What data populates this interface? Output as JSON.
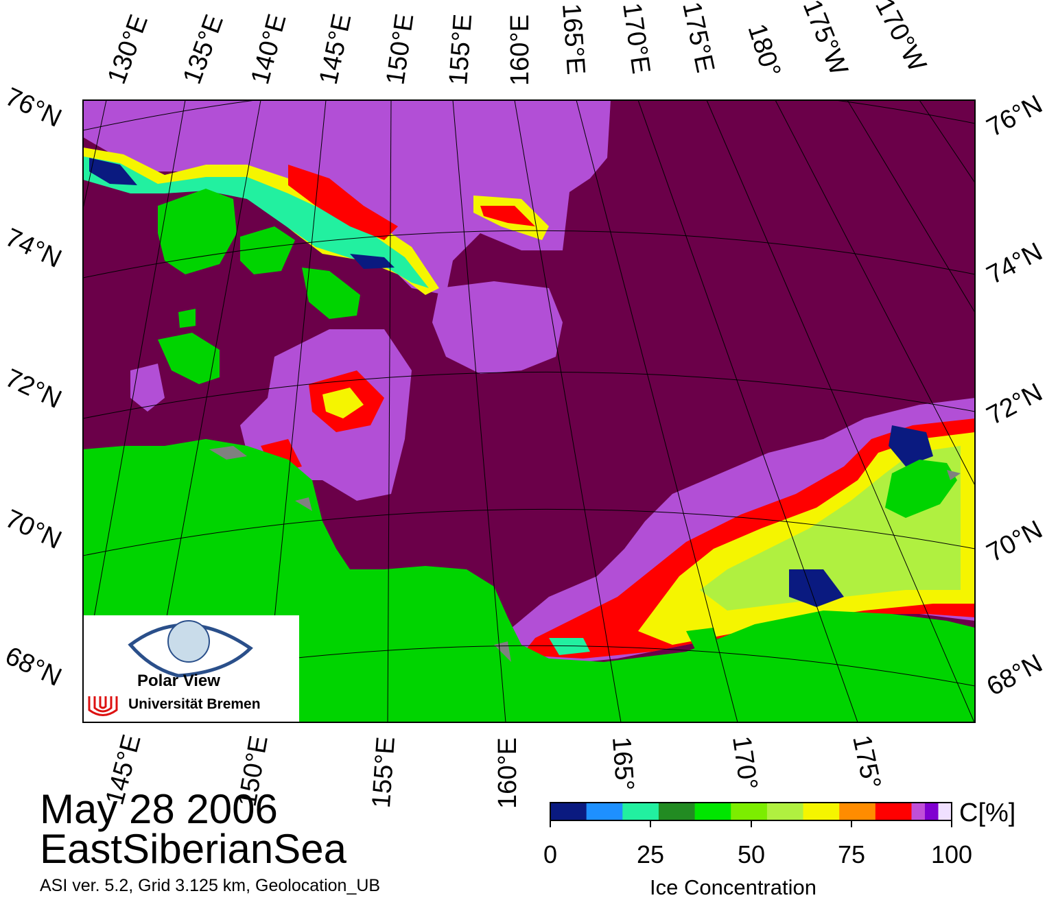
{
  "date_label": "May 28 2006",
  "region_label": "EastSiberianSea",
  "footnote": "ASI ver. 5.2,  Grid 3.125 km, Geolocation_UB",
  "colorbar": {
    "title": "Ice Concentration",
    "unit": "C[%]",
    "ticks": [
      "0",
      "25",
      "50",
      "75",
      "100"
    ],
    "colors": [
      "#0a1a80",
      "#1e90ff",
      "#22f0a0",
      "#228b22",
      "#00e600",
      "#7ced00",
      "#b0f040",
      "#f5f500",
      "#ff8c00",
      "#ff0000",
      "#c04fd8",
      "#8000d0",
      "#f0e0ff"
    ]
  },
  "top_lon_labels": [
    "130°E",
    "135°E",
    "140°E",
    "145°E",
    "150°E",
    "155°E",
    "160°E",
    "165°E",
    "170°E",
    "175°E",
    "180°",
    "175°W",
    "170°W"
  ],
  "bottom_lon_labels": [
    "145°E",
    "150°E",
    "155°E",
    "160°E",
    "165°",
    "170°",
    "175°"
  ],
  "lat_labels_left": [
    "76°N",
    "74°N",
    "72°N",
    "70°N",
    "68°N"
  ],
  "lat_labels_right": [
    "76°N",
    "74°N",
    "72°N",
    "70°N",
    "68°N"
  ],
  "logo": {
    "name": "Polar View",
    "institution": "Universität Bremen"
  },
  "colors": {
    "open_water": "#6b0049",
    "land": "#00d400",
    "coast_gray": "#808080"
  }
}
